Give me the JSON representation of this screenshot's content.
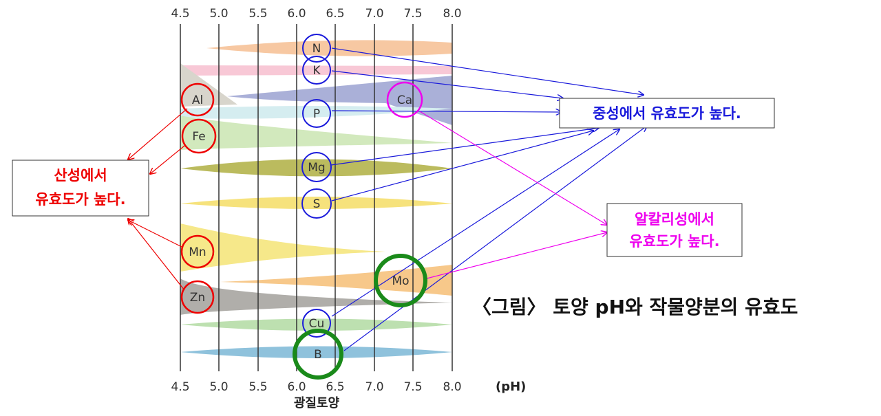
{
  "axis": {
    "top_ticks": [
      "4.5",
      "5.0",
      "5.5",
      "6.0",
      "6.5",
      "7.0",
      "7.5",
      "8.0"
    ],
    "bottom_ticks": [
      "4.5",
      "5.0",
      "5.5",
      "6.0",
      "6.5",
      "7.0",
      "7.5",
      "8.0"
    ],
    "unit": "(pH)",
    "soil": "광질토양"
  },
  "nutrients": [
    "N",
    "K",
    "Al",
    "Ca",
    "P",
    "Fe",
    "Mg",
    "S",
    "Mn",
    "Mo",
    "Zn",
    "Cu",
    "B"
  ],
  "notes": {
    "acidic": [
      "산성에서",
      "유효도가 높다."
    ],
    "neutral": "중성에서 유효도가 높다.",
    "alkaline": [
      "알칼리성에서",
      "유효도가 높다."
    ]
  },
  "figure_caption": "〈그림〉 토양 pH와 작물양분의 유효도"
}
